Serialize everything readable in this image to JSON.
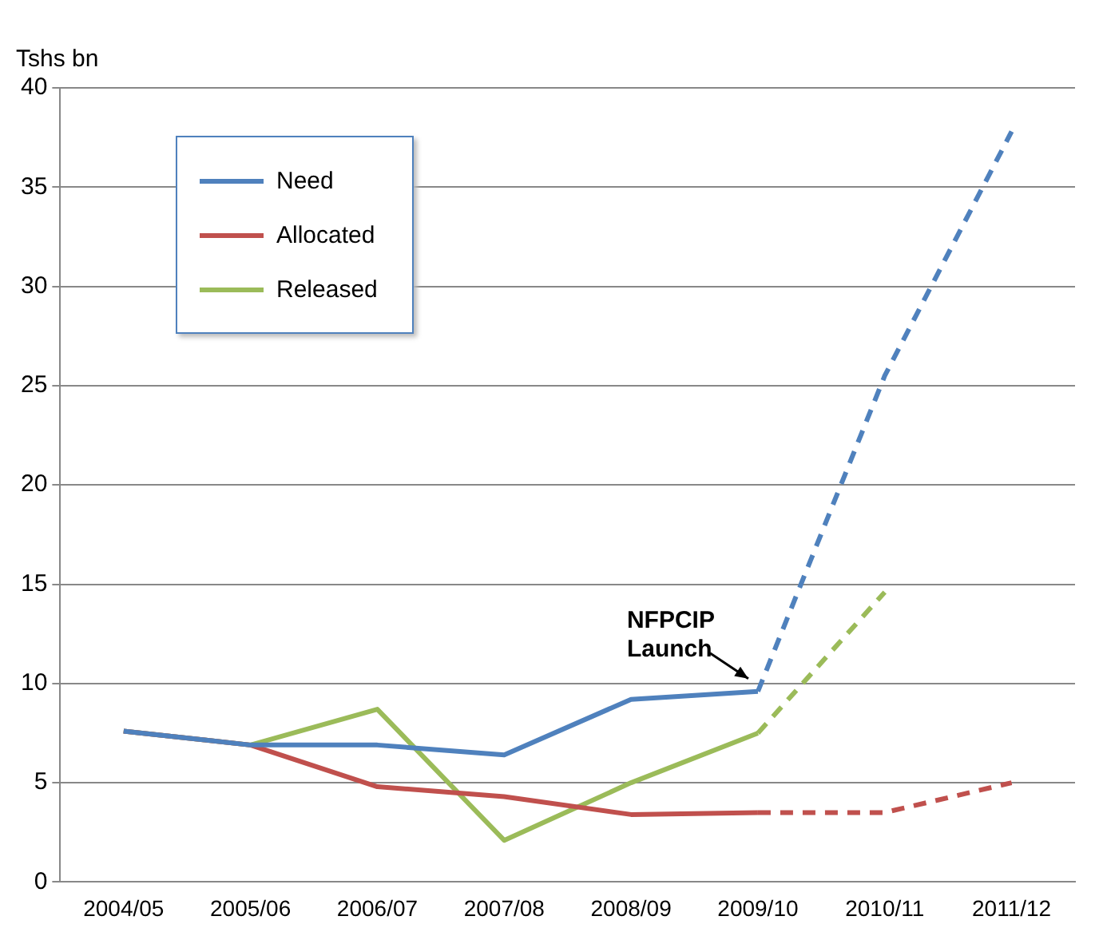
{
  "chart_data": {
    "type": "line",
    "ylabel": "Tshs bn",
    "categories": [
      "2004/05",
      "2005/06",
      "2006/07",
      "2007/08",
      "2008/09",
      "2009/10",
      "2010/11",
      "2011/12"
    ],
    "series": [
      {
        "name": "Need",
        "color": "#4f81bd",
        "values": [
          7.6,
          6.9,
          6.9,
          6.4,
          9.2,
          9.6,
          null,
          null
        ],
        "line_style": "solid"
      },
      {
        "name": "Allocated",
        "color": "#c0504d",
        "values": [
          7.6,
          6.9,
          4.8,
          4.3,
          3.4,
          3.5,
          null,
          null
        ],
        "line_style": "solid"
      },
      {
        "name": "Released",
        "color": "#9bbb59",
        "values": [
          7.6,
          6.9,
          8.7,
          2.1,
          5.0,
          7.5,
          null,
          null
        ],
        "line_style": "solid"
      },
      {
        "color": "#4f81bd",
        "values": [
          null,
          null,
          null,
          null,
          null,
          9.6,
          25.5,
          37.8
        ],
        "line_style": "dashed"
      },
      {
        "color": "#c0504d",
        "values": [
          null,
          null,
          null,
          null,
          null,
          3.5,
          3.5,
          5.0
        ],
        "line_style": "dashed"
      },
      {
        "color": "#9bbb59",
        "values": [
          null,
          null,
          null,
          null,
          null,
          7.5,
          14.6,
          null
        ],
        "line_style": "dashed"
      }
    ],
    "ylim": [
      0,
      40
    ],
    "yticks": [
      0,
      5,
      10,
      15,
      20,
      25,
      30,
      35,
      40
    ],
    "grid": "y",
    "legend": "top left",
    "marker": "none",
    "annotations": [
      {
        "text": "NFPCIP Launch",
        "x": "2009/10",
        "y": 9.6
      }
    ]
  }
}
